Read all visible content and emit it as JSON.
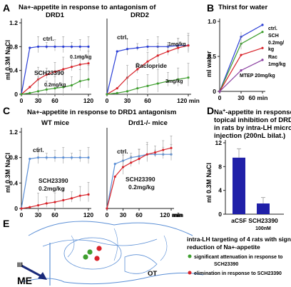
{
  "figure": {
    "panel_letters": [
      "A",
      "B",
      "C",
      "D",
      "E"
    ],
    "colors": {
      "blue": "#2b3fd6",
      "red": "#d8232a",
      "green": "#3f9f2f",
      "purple": "#8a3fa0",
      "axis": "#222222",
      "brain": "#5b8fd6"
    }
  },
  "chart_data": [
    {
      "panel": "A-left",
      "type": "line",
      "title": "Na+-appetite in response to antagonism of",
      "subtitle": "DRD1",
      "ylabel": "ml 0.3M NaCl",
      "xlabel": "min",
      "xticks": [
        "0",
        "30",
        "60",
        "120"
      ],
      "yticks": [
        "0",
        "0.4",
        "0.8",
        "1.2"
      ],
      "ylim": [
        0,
        1.2
      ],
      "x": [
        0,
        15,
        30,
        45,
        60,
        75,
        90,
        105,
        120
      ],
      "series": [
        {
          "name": "ctrl.",
          "color": "#2b3fd6",
          "values": [
            0,
            0.78,
            0.8,
            0.8,
            0.8,
            0.8,
            0.8,
            0.8,
            0.8
          ]
        },
        {
          "name": "0.1mg/kg",
          "color": "#d8232a",
          "values": [
            0,
            0.12,
            0.25,
            0.33,
            0.38,
            0.42,
            0.46,
            0.5,
            0.52
          ]
        },
        {
          "name": "0.2mg/kg",
          "color": "#3f9f2f",
          "values": [
            0,
            0.02,
            0.05,
            0.08,
            0.1,
            0.12,
            0.15,
            0.22,
            0.25
          ]
        }
      ],
      "annotations": [
        "ctrl.",
        "0.1mg/kg",
        "SCH23390",
        "0.2mg/kg"
      ]
    },
    {
      "panel": "A-right",
      "type": "line",
      "subtitle": "DRD2",
      "xlabel": "min",
      "xticks": [
        "0",
        "30",
        "60",
        "120 min"
      ],
      "ylim": [
        0,
        1.2
      ],
      "x": [
        0,
        15,
        30,
        45,
        60,
        75,
        90,
        105,
        120
      ],
      "series": [
        {
          "name": "1mg/kg",
          "color": "#2b3fd6",
          "values": [
            0,
            0.72,
            0.76,
            0.78,
            0.8,
            0.8,
            0.8,
            0.82,
            0.82
          ]
        },
        {
          "name": "Raclopride",
          "color": "#d8232a",
          "values": [
            0,
            0.1,
            0.28,
            0.42,
            0.55,
            0.65,
            0.72,
            0.78,
            0.82
          ]
        },
        {
          "name": "3mg/kg",
          "color": "#3f9f2f",
          "values": [
            0,
            0.02,
            0.05,
            0.1,
            0.14,
            0.18,
            0.22,
            0.25,
            0.28
          ]
        }
      ],
      "annotations": [
        "ctrl.",
        "1mg/kg",
        "Raclopride",
        "3mg/kg"
      ]
    },
    {
      "panel": "B",
      "type": "line",
      "title": "Thirst for water",
      "ylabel": "ml water",
      "xlabel": "min",
      "xticks": [
        "0",
        "30",
        "60 min"
      ],
      "yticks": [
        "0",
        "0.5",
        "1.0"
      ],
      "ylim": [
        0,
        1.0
      ],
      "x": [
        0,
        30,
        60
      ],
      "series": [
        {
          "name": "ctrl.",
          "color": "#2b3fd6",
          "values": [
            0,
            0.78,
            0.95
          ]
        },
        {
          "name": "SCH 0.2mg/kg",
          "color": "#3f9f2f",
          "values": [
            0,
            0.68,
            0.85
          ]
        },
        {
          "name": "Rac 1mg/kg",
          "color": "#d8232a",
          "values": [
            0,
            0.52,
            0.62
          ]
        },
        {
          "name": "MTEP 20mg/kg",
          "color": "#8a3fa0",
          "values": [
            0,
            0.3,
            0.45
          ]
        }
      ],
      "legend_labels": [
        "ctrl.",
        "SCH",
        "0.2mg/",
        "kg",
        "Rac",
        "1mg/kg",
        "MTEP 20mg/kg"
      ]
    },
    {
      "panel": "C-left",
      "type": "line",
      "title": "Na+-appetite in response to DRD1 antagonism",
      "subtitle": "WT mice",
      "ylabel": "ml 0.3M NaCl",
      "xlabel": "min",
      "xticks": [
        "0",
        "30",
        "60",
        "120"
      ],
      "yticks": [
        "0",
        "0.4",
        "0.8",
        "1.2"
      ],
      "ylim": [
        0,
        1.2
      ],
      "x": [
        0,
        15,
        30,
        45,
        60,
        75,
        90,
        105,
        120
      ],
      "series": [
        {
          "name": "ctrl.",
          "color": "#5b8fd6",
          "values": [
            0,
            0.78,
            0.8,
            0.8,
            0.8,
            0.8,
            0.8,
            0.8,
            0.8
          ]
        },
        {
          "name": "SCH23390 0.2mg/kg",
          "color": "#d8232a",
          "values": [
            0,
            0.02,
            0.05,
            0.08,
            0.1,
            0.13,
            0.16,
            0.2,
            0.22
          ]
        }
      ],
      "annotations": [
        "ctrl.",
        "SCH23390",
        "0.2mg/kg"
      ]
    },
    {
      "panel": "C-right",
      "type": "line",
      "subtitle": "Drd1-/- mice",
      "xlabel": "min",
      "xticks": [
        "0",
        "30",
        "60",
        "120 min"
      ],
      "ylim": [
        0,
        1.2
      ],
      "x": [
        0,
        15,
        30,
        45,
        60,
        75,
        90,
        105,
        120
      ],
      "series": [
        {
          "name": "ctrl.",
          "color": "#5b8fd6",
          "values": [
            0,
            0.7,
            0.75,
            0.8,
            0.82,
            0.85,
            0.85,
            0.85,
            0.85
          ]
        },
        {
          "name": "SCH23390 0.2mg/kg",
          "color": "#d8232a",
          "values": [
            0,
            0.5,
            0.65,
            0.72,
            0.78,
            0.85,
            0.88,
            0.92,
            0.95
          ]
        }
      ],
      "annotations": [
        "ctrl.",
        "SCH23390",
        "0.2mg/kg"
      ]
    },
    {
      "panel": "D",
      "type": "bar",
      "title": "Na+-appetite in response to topical inhibition of DRD1 in rats by intra-LH micro-injection (200nL bilat.)",
      "ylabel": "ml 0.3M NaCl",
      "categories": [
        "aCSF",
        "SCH23390 100nM"
      ],
      "values": [
        9.5,
        1.8
      ],
      "errors": [
        1.5,
        1.0
      ],
      "yticks": [
        "0",
        "4",
        "8",
        "12"
      ],
      "ylim": [
        0,
        12
      ],
      "color": "#2020a8"
    }
  ],
  "panelE": {
    "labels": {
      "III": "III",
      "ME": "ME",
      "OT": "OT"
    },
    "legend_title_1": "intra-LH targeting of 4 rats with significant",
    "legend_title_2": "reduction of Na+-appetite",
    "legend_green": "significant attenuation in response to",
    "legend_green_2": "SCH23390",
    "legend_red": "elimination in response to SCH23390",
    "dots": [
      {
        "color": "#3f9f2f"
      },
      {
        "color": "#d8232a"
      },
      {
        "color": "#3f9f2f"
      },
      {
        "color": "#d8232a"
      }
    ]
  }
}
